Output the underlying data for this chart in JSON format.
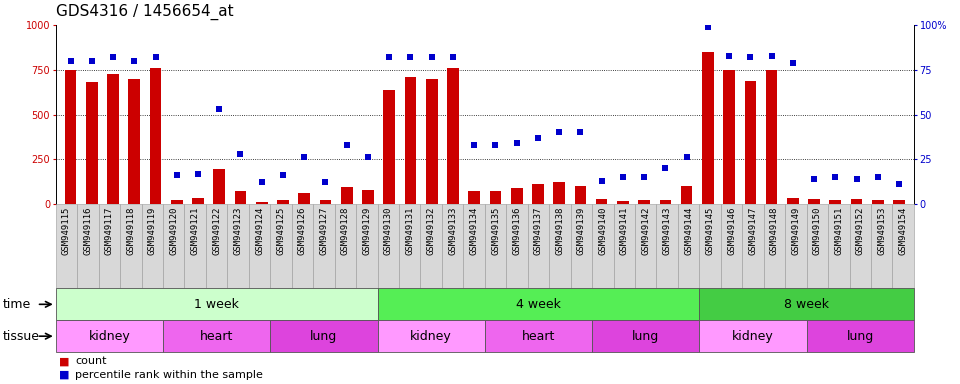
{
  "title": "GDS4316 / 1456654_at",
  "samples": [
    "GSM949115",
    "GSM949116",
    "GSM949117",
    "GSM949118",
    "GSM949119",
    "GSM949120",
    "GSM949121",
    "GSM949122",
    "GSM949123",
    "GSM949124",
    "GSM949125",
    "GSM949126",
    "GSM949127",
    "GSM949128",
    "GSM949129",
    "GSM949130",
    "GSM949131",
    "GSM949132",
    "GSM949133",
    "GSM949134",
    "GSM949135",
    "GSM949136",
    "GSM949137",
    "GSM949138",
    "GSM949139",
    "GSM949140",
    "GSM949141",
    "GSM949142",
    "GSM949143",
    "GSM949144",
    "GSM949145",
    "GSM949146",
    "GSM949147",
    "GSM949148",
    "GSM949149",
    "GSM949150",
    "GSM949151",
    "GSM949152",
    "GSM949153",
    "GSM949154"
  ],
  "counts": [
    750,
    680,
    730,
    700,
    760,
    20,
    35,
    195,
    70,
    10,
    20,
    60,
    20,
    95,
    80,
    640,
    710,
    700,
    760,
    75,
    75,
    90,
    110,
    120,
    100,
    30,
    15,
    20,
    20,
    100,
    850,
    750,
    690,
    750,
    35,
    30,
    20,
    30,
    20,
    20
  ],
  "percentile": [
    80,
    80,
    82,
    80,
    82,
    16,
    17,
    53,
    28,
    12,
    16,
    26,
    12,
    33,
    26,
    82,
    82,
    82,
    82,
    33,
    33,
    34,
    37,
    40,
    40,
    13,
    15,
    15,
    20,
    26,
    99,
    83,
    82,
    83,
    79,
    14,
    15,
    14,
    15,
    11
  ],
  "ylim_left": [
    0,
    1000
  ],
  "ylim_right": [
    0,
    100
  ],
  "yticks_left": [
    0,
    250,
    500,
    750,
    1000
  ],
  "yticks_right": [
    0,
    25,
    50,
    75,
    100
  ],
  "bar_color": "#cc0000",
  "dot_color": "#0000cc",
  "time_groups": [
    {
      "label": "1 week",
      "start": 0,
      "end": 14,
      "color": "#ccffcc"
    },
    {
      "label": "4 week",
      "start": 15,
      "end": 29,
      "color": "#55ee55"
    },
    {
      "label": "8 week",
      "start": 30,
      "end": 39,
      "color": "#44cc44"
    }
  ],
  "tissue_groups": [
    {
      "label": "kidney",
      "start": 0,
      "end": 4,
      "color": "#ff99ff"
    },
    {
      "label": "heart",
      "start": 5,
      "end": 9,
      "color": "#ee66ee"
    },
    {
      "label": "lung",
      "start": 10,
      "end": 14,
      "color": "#dd44dd"
    },
    {
      "label": "kidney",
      "start": 15,
      "end": 19,
      "color": "#ff99ff"
    },
    {
      "label": "heart",
      "start": 20,
      "end": 24,
      "color": "#ee66ee"
    },
    {
      "label": "lung",
      "start": 25,
      "end": 29,
      "color": "#dd44dd"
    },
    {
      "label": "kidney",
      "start": 30,
      "end": 34,
      "color": "#ff99ff"
    },
    {
      "label": "lung",
      "start": 35,
      "end": 39,
      "color": "#dd44dd"
    }
  ],
  "tick_fontsize": 7,
  "sample_fontsize": 6.5,
  "label_fontsize": 9,
  "title_fontsize": 11
}
